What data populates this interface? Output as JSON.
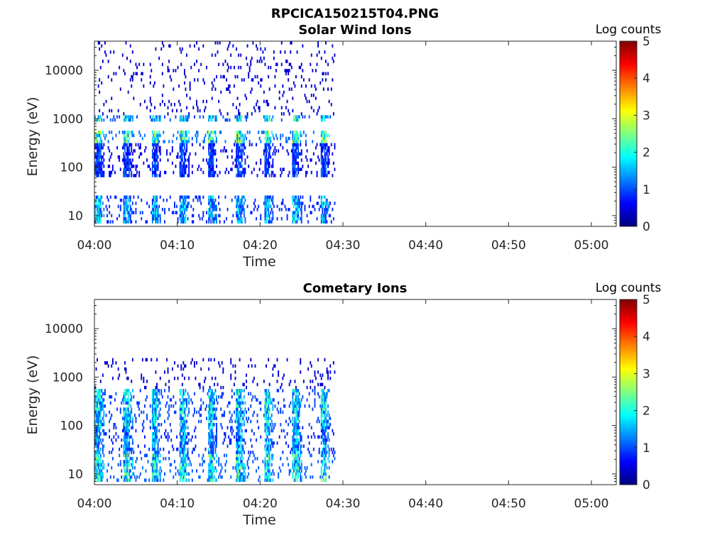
{
  "figure_title": "RPCICA150215T04.PNG",
  "chart_data": [
    {
      "type": "heatmap",
      "title": "Solar Wind Ions",
      "xlabel": "Time",
      "ylabel": "Energy (eV)",
      "x_ticks": [
        "04:00",
        "04:10",
        "04:20",
        "04:30",
        "04:40",
        "04:50",
        "05:00"
      ],
      "xlim": [
        "04:00",
        "05:03"
      ],
      "y_scale": "log",
      "ylim": [
        6,
        40000
      ],
      "y_ticks": [
        "10",
        "100",
        "1000",
        "10000"
      ],
      "colorbar": {
        "label": "Log counts",
        "ticks": [
          "0",
          "1",
          "2",
          "3",
          "4",
          "5"
        ],
        "range": [
          0,
          5
        ],
        "colormap": "jet"
      },
      "data_time_range": [
        "04:00",
        "04:29"
      ],
      "structure": "Repeating bursts roughly every 3.4 min; strongest low-energy band near 10-30 eV, blobs near 300-500 eV and 900-1000 eV up to log counts ~3, sparse counts up to 40000 eV",
      "features": [
        {
          "energy_range_eV": [
            7,
            28
          ],
          "max_log_counts": 2.1
        },
        {
          "energy_range_eV": [
            60,
            300
          ],
          "max_log_counts": 1.3
        },
        {
          "energy_range_eV": [
            300,
            550
          ],
          "max_log_counts": 3.0
        },
        {
          "energy_range_eV": [
            850,
            1100
          ],
          "max_log_counts": 2.5
        },
        {
          "energy_range_eV": [
            1200,
            40000
          ],
          "max_log_counts": 0.4
        }
      ]
    },
    {
      "type": "heatmap",
      "title": "Cometary Ions",
      "xlabel": "Time",
      "ylabel": "Energy (eV)",
      "x_ticks": [
        "04:00",
        "04:10",
        "04:20",
        "04:30",
        "04:40",
        "04:50",
        "05:00"
      ],
      "xlim": [
        "04:00",
        "05:03"
      ],
      "y_scale": "log",
      "ylim": [
        6,
        40000
      ],
      "y_ticks": [
        "10",
        "100",
        "1000",
        "10000"
      ],
      "colorbar": {
        "label": "Log counts",
        "ticks": [
          "0",
          "1",
          "2",
          "3",
          "4",
          "5"
        ],
        "range": [
          0,
          5
        ],
        "colormap": "jet"
      },
      "data_time_range": [
        "04:00",
        "04:29"
      ],
      "structure": "Repeating plumes roughly every 3.4 min; strongest near 10-25 eV (log counts ~2.7), plumes extending from 10 to ~500 eV, sparse counts up to ~2500 eV",
      "features": [
        {
          "energy_range_eV": [
            7,
            25
          ],
          "max_log_counts": 2.7
        },
        {
          "energy_range_eV": [
            25,
            100
          ],
          "max_log_counts": 2.0
        },
        {
          "energy_range_eV": [
            100,
            600
          ],
          "max_log_counts": 2.4
        },
        {
          "energy_range_eV": [
            600,
            2500
          ],
          "max_log_counts": 0.4
        }
      ]
    }
  ]
}
